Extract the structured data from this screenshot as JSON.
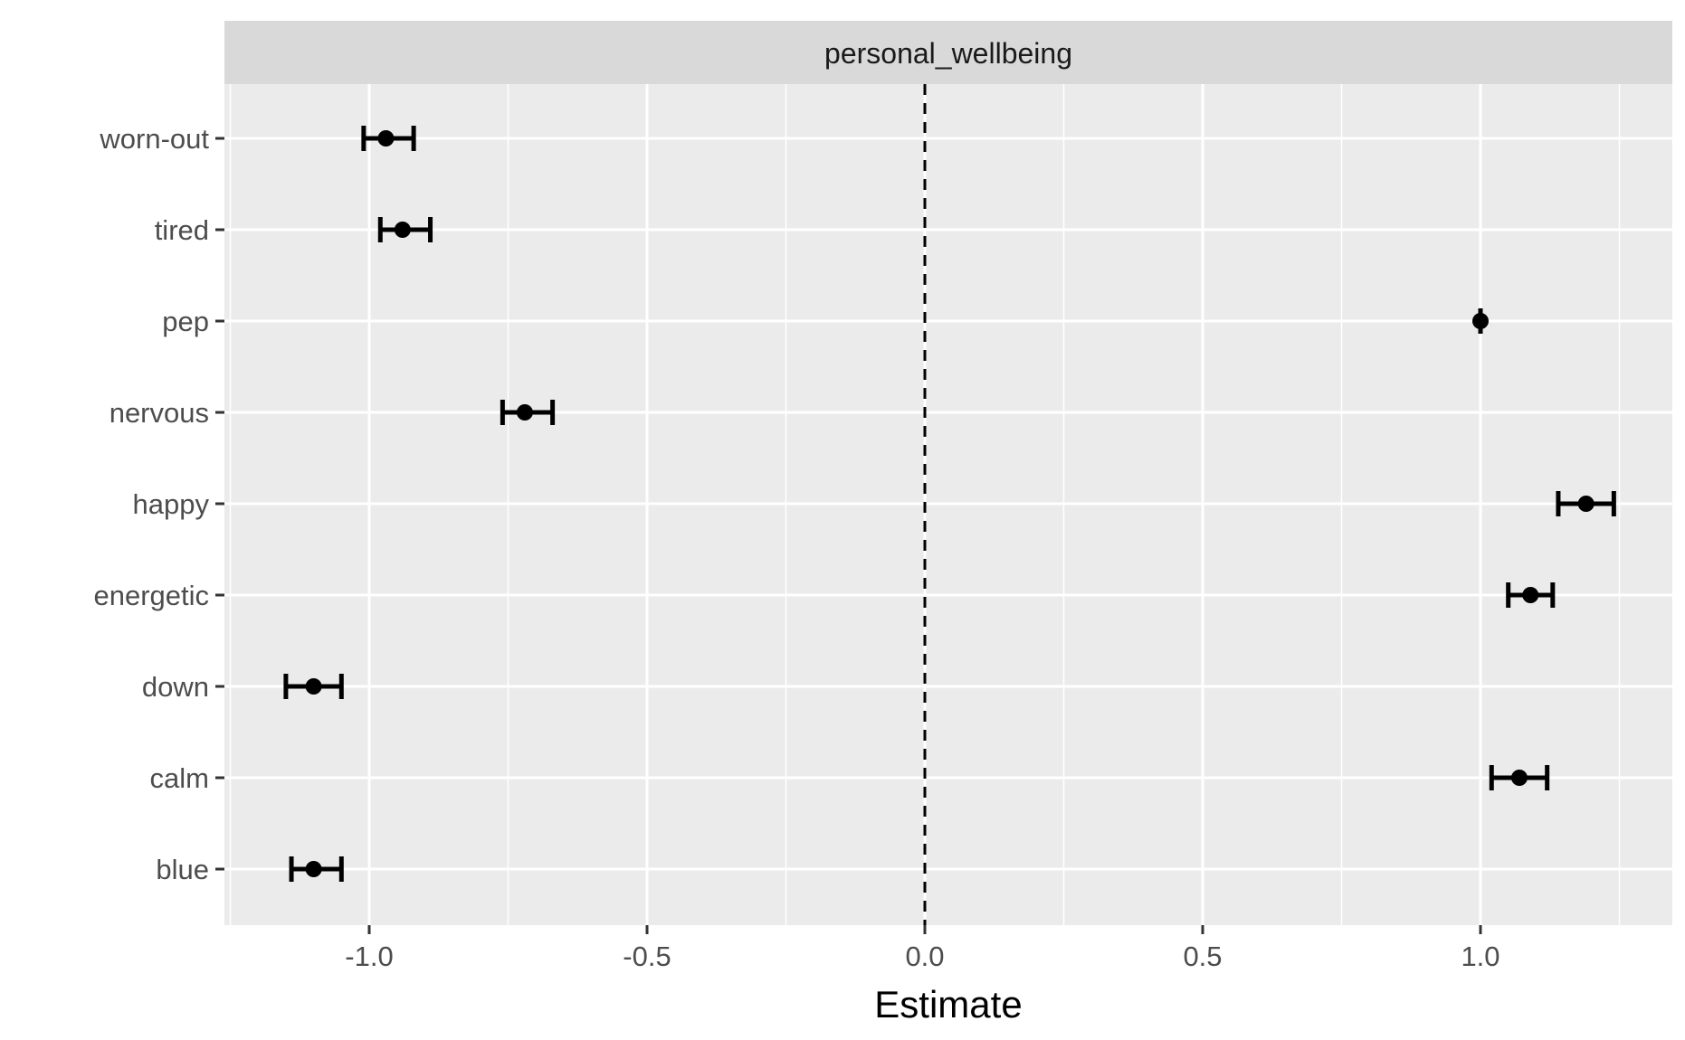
{
  "chart_data": {
    "type": "scatter",
    "facet_label": "personal_wellbeing",
    "xlabel": "Estimate",
    "ylabel": "",
    "xlim": [
      -1.25,
      1.35
    ],
    "x_ticks": [
      -1.0,
      -0.5,
      0.0,
      0.5,
      1.0
    ],
    "x_tick_labels": [
      "-1.0",
      "-0.5",
      "0.0",
      "0.5",
      "1.0"
    ],
    "reference_line": {
      "x": 0,
      "style": "dashed"
    },
    "grid": true,
    "categories": [
      "worn-out",
      "tired",
      "pep",
      "nervous",
      "happy",
      "energetic",
      "down",
      "calm",
      "blue"
    ],
    "estimates": [
      -0.97,
      -0.94,
      1.0,
      -0.72,
      1.19,
      1.09,
      -1.1,
      1.07,
      -1.1
    ],
    "ci_low": [
      -1.01,
      -0.98,
      1.0,
      -0.76,
      1.14,
      1.05,
      -1.15,
      1.02,
      -1.14
    ],
    "ci_high": [
      -0.92,
      -0.89,
      1.0,
      -0.67,
      1.24,
      1.13,
      -1.05,
      1.12,
      -1.05
    ],
    "colors": {
      "panel": "#ebebeb",
      "strip": "#d9d9d9",
      "grid": "#ffffff",
      "marks": "#000000"
    }
  }
}
